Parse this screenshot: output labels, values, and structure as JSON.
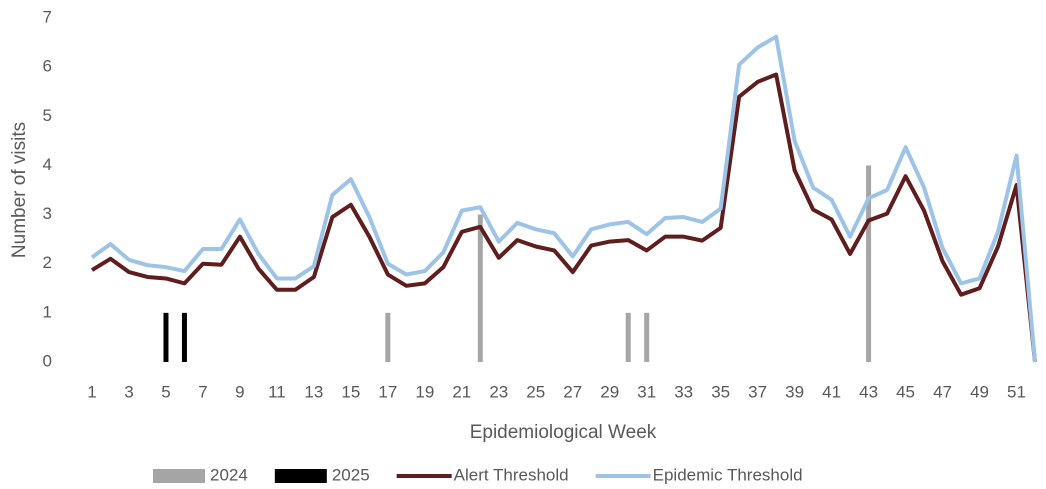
{
  "chart_data": {
    "type": "bar-line",
    "x_label": "Epidemiological Week",
    "y_label": "Number of visits",
    "categories": [
      1,
      null,
      3,
      null,
      5,
      null,
      7,
      null,
      9,
      null,
      11,
      null,
      13,
      null,
      15,
      null,
      17,
      null,
      19,
      null,
      21,
      null,
      23,
      null,
      25,
      null,
      27,
      null,
      29,
      null,
      31,
      null,
      33,
      null,
      35,
      null,
      37,
      null,
      39,
      null,
      41,
      null,
      43,
      null,
      45,
      null,
      47,
      null,
      49,
      null,
      51,
      null
    ],
    "series": [
      {
        "name": "2024",
        "kind": "bar",
        "color": "#a5a5a5",
        "values": [
          0,
          0,
          0,
          0,
          0,
          0,
          0,
          0,
          0,
          0,
          0,
          0,
          0,
          0,
          0,
          0,
          1,
          0,
          0,
          0,
          0,
          3,
          0,
          0,
          0,
          0,
          0,
          0,
          0,
          1,
          1,
          0,
          0,
          0,
          0,
          0,
          0,
          0,
          0,
          0,
          0,
          0,
          4,
          0,
          0,
          0,
          0,
          0,
          0,
          0,
          0,
          0
        ]
      },
      {
        "name": "2025",
        "kind": "bar",
        "color": "#000000",
        "values": [
          0,
          0,
          0,
          0,
          1,
          1,
          0,
          0,
          0,
          0,
          0,
          0,
          0,
          0,
          0,
          0,
          0,
          0,
          0,
          0,
          0,
          0,
          0,
          0,
          0,
          0,
          0,
          0,
          0,
          0,
          0,
          0,
          0,
          0,
          0,
          0,
          0,
          0,
          0,
          0,
          0,
          0,
          0,
          0,
          0,
          0,
          0,
          0,
          0,
          0,
          0,
          0
        ]
      },
      {
        "name": "Alert Threshold",
        "kind": "line",
        "color": "#5f1d1d",
        "values": [
          1.87,
          2.1,
          1.83,
          1.73,
          1.7,
          1.6,
          2.0,
          1.98,
          2.55,
          1.9,
          1.47,
          1.47,
          1.73,
          2.95,
          3.2,
          2.55,
          1.78,
          1.55,
          1.6,
          1.93,
          2.65,
          2.75,
          2.12,
          2.48,
          2.35,
          2.27,
          1.83,
          2.37,
          2.45,
          2.48,
          2.27,
          2.55,
          2.55,
          2.47,
          2.73,
          5.4,
          5.7,
          5.85,
          3.9,
          3.1,
          2.9,
          2.2,
          2.88,
          3.02,
          3.78,
          3.08,
          2.05,
          1.37,
          1.5,
          2.35,
          3.6,
          0
        ]
      },
      {
        "name": "Epidemic Threshold",
        "kind": "line",
        "color": "#9dc3e6",
        "values": [
          2.13,
          2.4,
          2.08,
          1.97,
          1.93,
          1.85,
          2.3,
          2.3,
          2.9,
          2.2,
          1.7,
          1.7,
          1.95,
          3.4,
          3.72,
          2.95,
          2.0,
          1.78,
          1.85,
          2.23,
          3.08,
          3.15,
          2.45,
          2.83,
          2.7,
          2.62,
          2.15,
          2.7,
          2.8,
          2.85,
          2.6,
          2.93,
          2.95,
          2.85,
          3.12,
          6.05,
          6.4,
          6.62,
          4.5,
          3.55,
          3.3,
          2.55,
          3.33,
          3.5,
          4.37,
          3.55,
          2.32,
          1.6,
          1.7,
          2.65,
          4.2,
          0
        ]
      }
    ],
    "ylim": [
      0,
      7
    ],
    "yticks": [
      0,
      1,
      2,
      3,
      4,
      5,
      6,
      7
    ],
    "grid": false,
    "legend": "bottom"
  }
}
